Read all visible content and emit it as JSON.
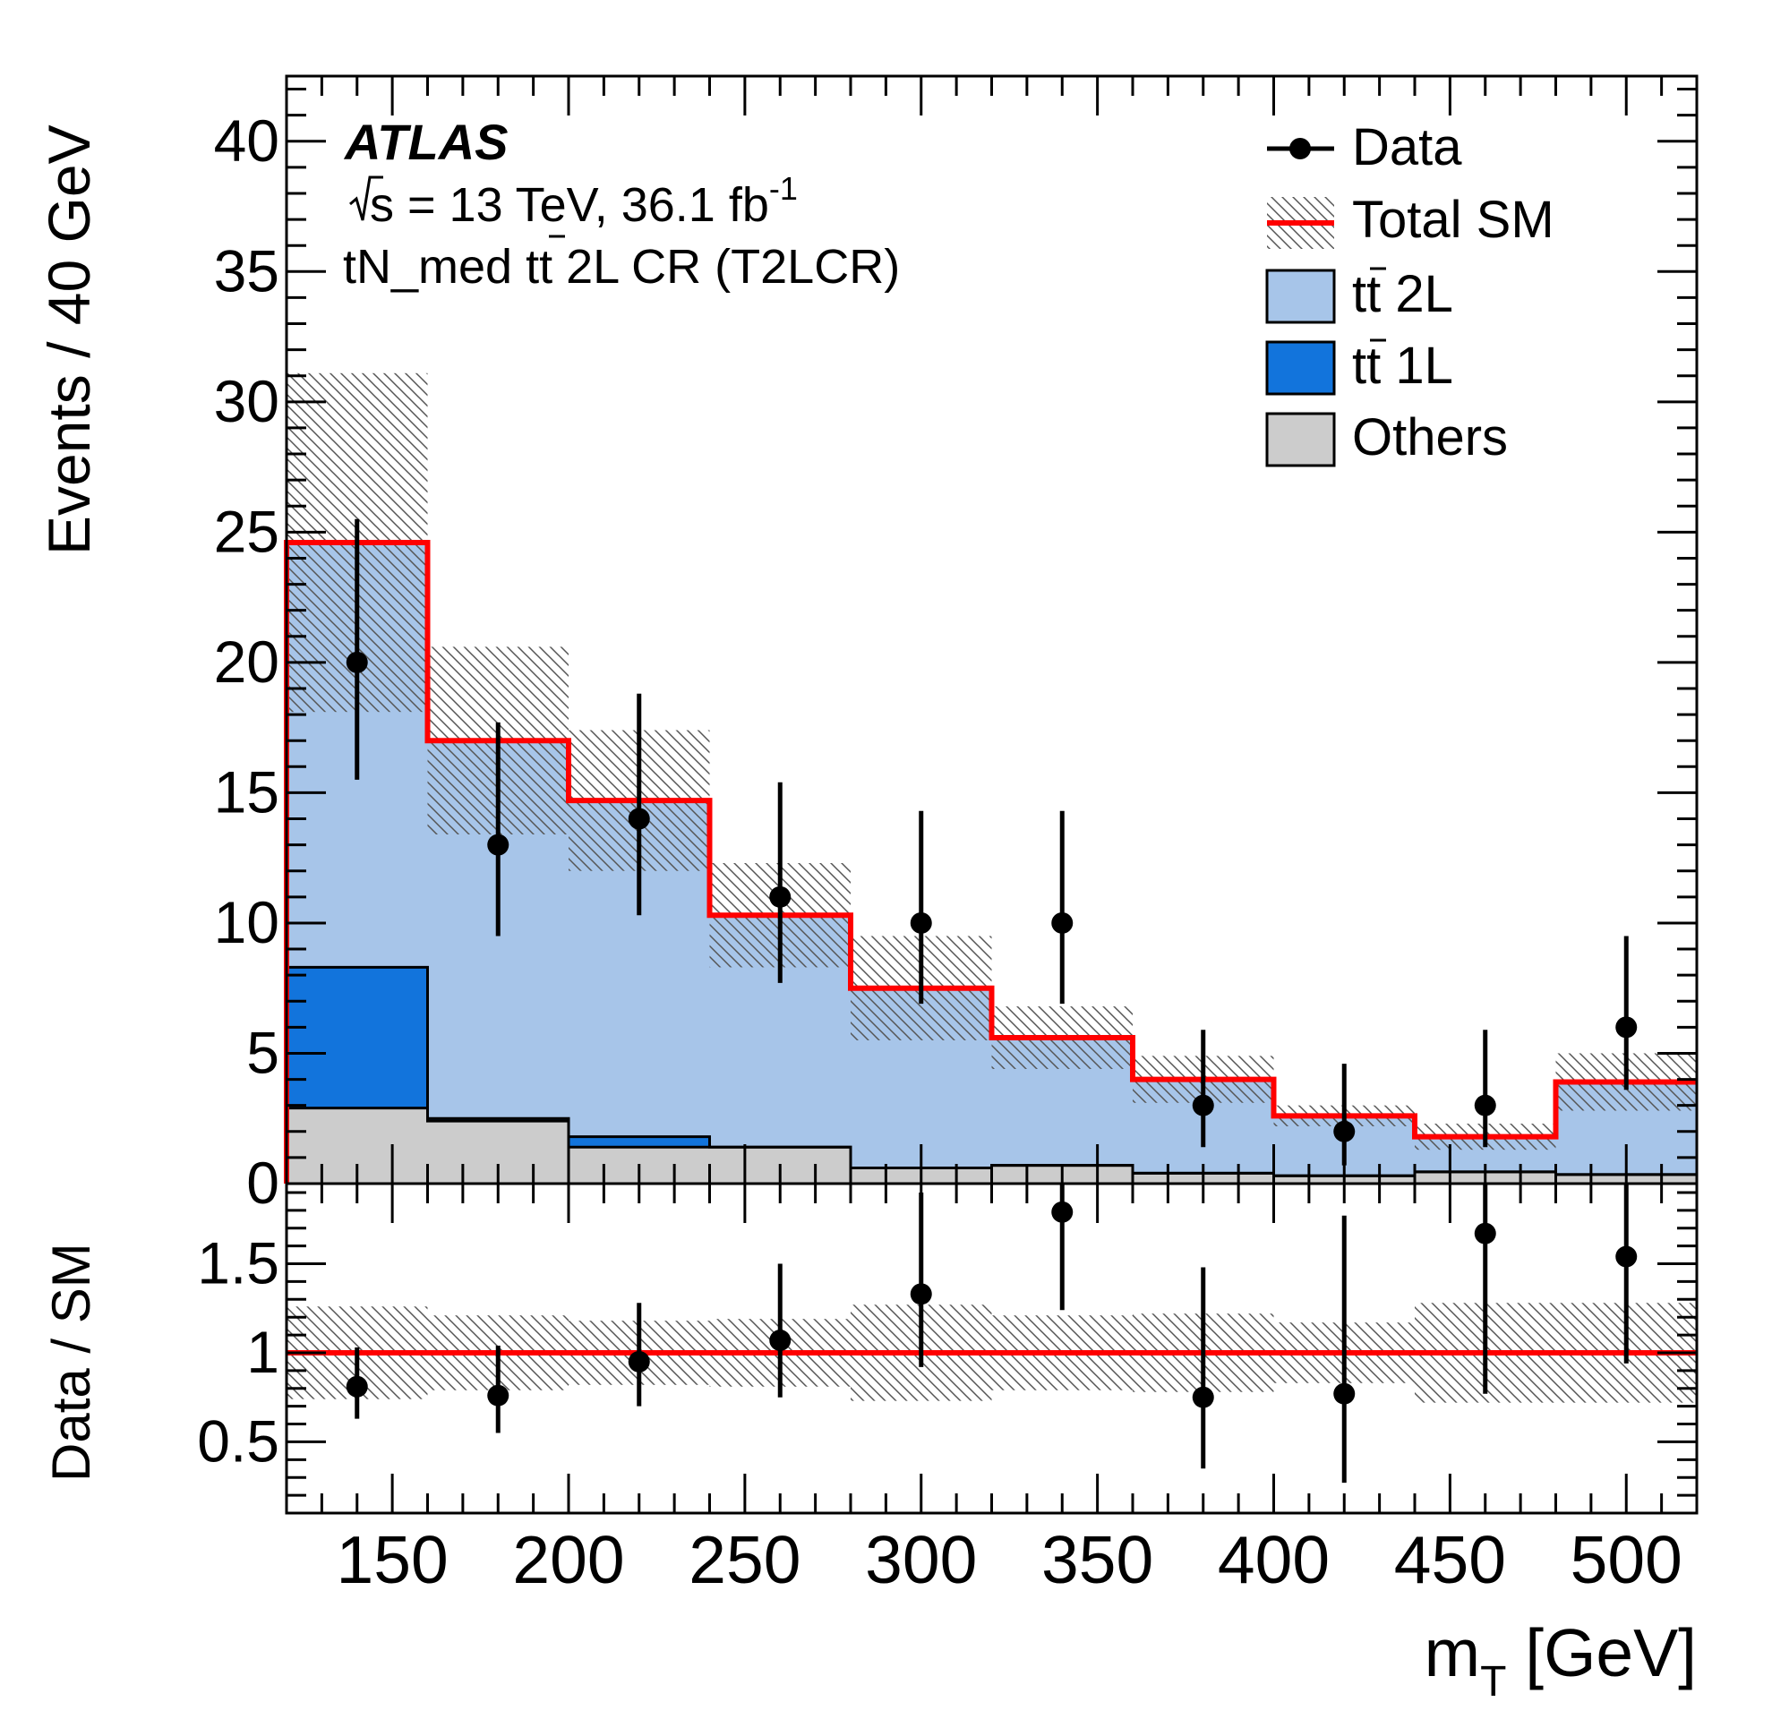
{
  "colors": {
    "tt2l": "#a7c5e9",
    "tt1l": "#1274dc",
    "others": "#cccccc",
    "total_sm": "#ff0000",
    "data": "#000000",
    "hatch": "#555555"
  },
  "chart_data": {
    "type": "bar",
    "title": "",
    "xlabel_main": "m",
    "xlabel_sub": "T",
    "xlabel_unit": " [GeV]",
    "ylabel": "Events / 40 GeV",
    "ratio_ylabel": "Data / SM",
    "xlim": [
      120,
      520
    ],
    "ylim": [
      0,
      42.5
    ],
    "ratio_ylim": [
      0.1,
      1.95
    ],
    "xticks": [
      150,
      200,
      250,
      300,
      350,
      400,
      450,
      500
    ],
    "xtick_labels": [
      "150",
      "200",
      "250",
      "300",
      "350",
      "400",
      "450",
      "500"
    ],
    "yticks": [
      0,
      5,
      10,
      15,
      20,
      25,
      30,
      35,
      40
    ],
    "ytick_labels": [
      "0",
      "5",
      "10",
      "15",
      "20",
      "25",
      "30",
      "35",
      "40"
    ],
    "ratio_yticks": [
      0.5,
      1,
      1.5
    ],
    "ratio_ytick_labels": [
      "0.5",
      "1",
      "1.5"
    ],
    "atlas_label": "ATLAS",
    "energy_label_prefix": "s",
    "energy_label_text": " = 13 TeV, 36.1 fb",
    "energy_label_sup": "-1",
    "region_label_prefix": "tN_med t",
    "region_label_suffix": " 2L CR (T2LCR)",
    "bin_edges": [
      120,
      160,
      200,
      240,
      280,
      320,
      360,
      400,
      440,
      480,
      520
    ],
    "series": [
      {
        "name": "Others",
        "values": [
          2.9,
          2.4,
          1.4,
          1.4,
          0.6,
          0.7,
          0.4,
          0.3,
          0.45,
          0.35
        ]
      },
      {
        "name": "tt 1L",
        "values": [
          5.4,
          0.1,
          0.4,
          0.0,
          0.0,
          0.0,
          0.0,
          0.0,
          0.0,
          0.0
        ]
      },
      {
        "name": "tt 2L",
        "values": [
          16.3,
          14.5,
          12.9,
          8.9,
          6.9,
          4.9,
          3.6,
          2.3,
          1.35,
          3.55
        ]
      }
    ],
    "total_sm": [
      24.6,
      17.0,
      14.7,
      10.3,
      7.5,
      5.6,
      4.0,
      2.6,
      1.8,
      3.9
    ],
    "total_sm_unc": [
      6.5,
      3.6,
      2.7,
      2.0,
      2.0,
      1.2,
      0.9,
      0.4,
      0.5,
      1.1
    ],
    "data": {
      "x": [
        140,
        180,
        220,
        260,
        300,
        340,
        380,
        420,
        460,
        500
      ],
      "y": [
        20,
        13,
        14,
        11,
        10,
        10,
        3,
        2,
        3,
        6
      ],
      "err_up": [
        5.5,
        4.7,
        4.8,
        4.4,
        4.3,
        4.3,
        2.9,
        2.6,
        2.9,
        3.5
      ],
      "err_down": [
        4.5,
        3.5,
        3.7,
        3.3,
        3.1,
        3.1,
        1.6,
        1.3,
        1.6,
        2.4
      ]
    },
    "ratio": {
      "y": [
        0.81,
        0.76,
        0.95,
        1.07,
        1.33,
        1.79,
        0.75,
        0.77,
        1.67,
        1.54
      ],
      "err_up": [
        0.22,
        0.28,
        0.33,
        0.43,
        0.57,
        0.7,
        0.73,
        1.0,
        1.6,
        0.9
      ],
      "err_down": [
        0.18,
        0.21,
        0.25,
        0.32,
        0.41,
        0.55,
        0.4,
        0.5,
        0.9,
        0.6
      ],
      "band": [
        0.26,
        0.21,
        0.18,
        0.19,
        0.27,
        0.21,
        0.22,
        0.17,
        0.28,
        0.28
      ]
    },
    "legend": [
      {
        "key": "data",
        "label": "Data"
      },
      {
        "key": "total",
        "label": "Total SM"
      },
      {
        "key": "tt2l",
        "label": "2L"
      },
      {
        "key": "tt1l",
        "label": "1L"
      },
      {
        "key": "others",
        "label": "Others"
      }
    ],
    "legend_placement": "top-right"
  }
}
